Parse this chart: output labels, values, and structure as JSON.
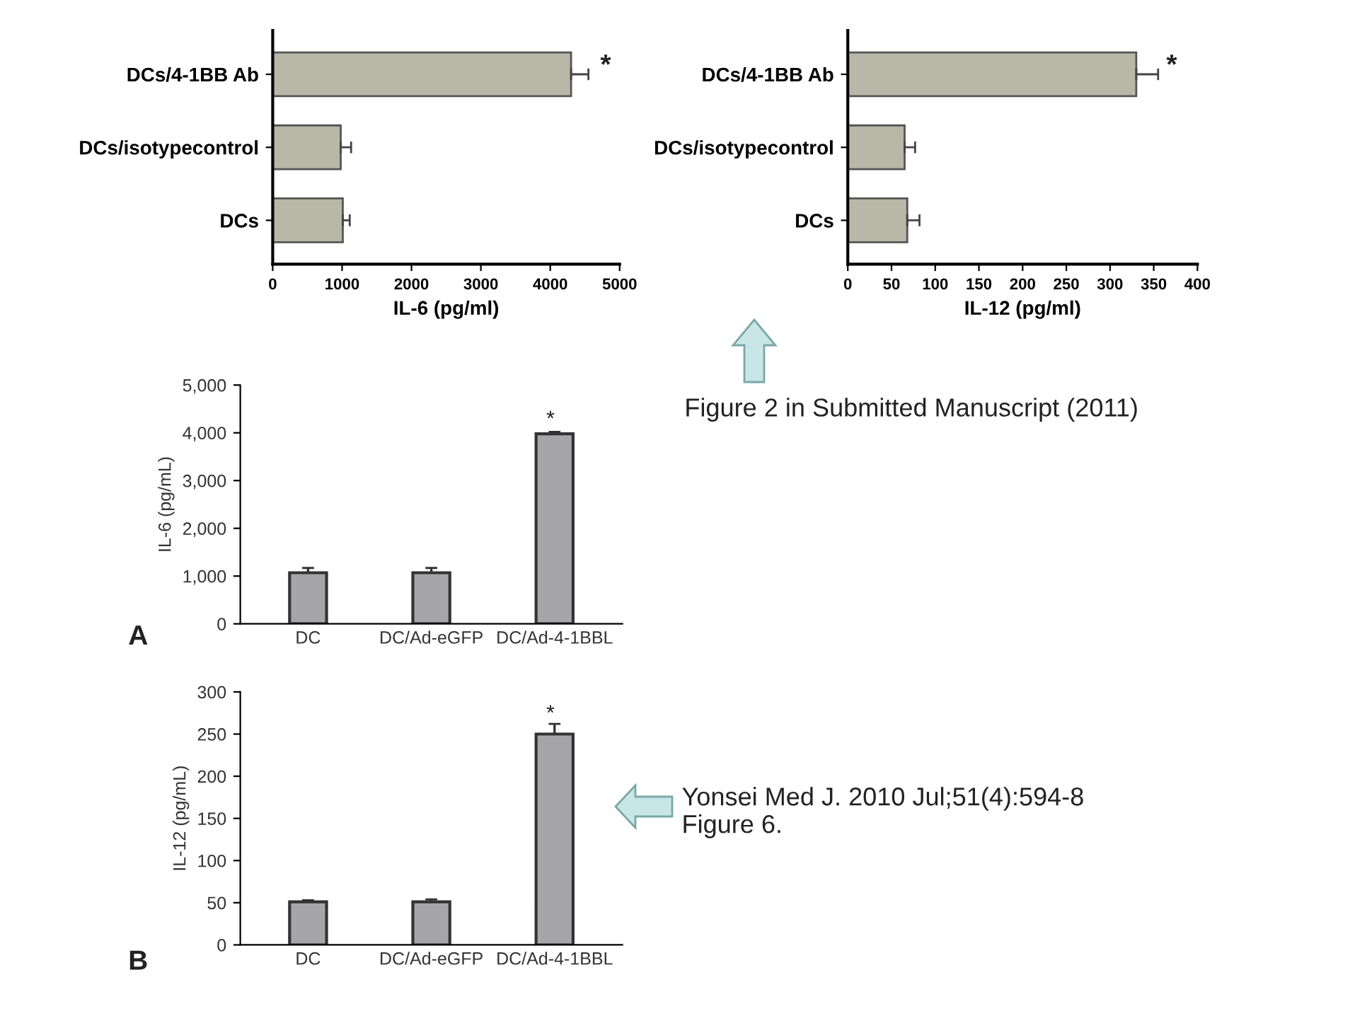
{
  "chart_data": [
    {
      "type": "bar",
      "orientation": "horizontal",
      "categories": [
        "DCs/4-1BB Ab",
        "DCs/isotypecontrol",
        "DCs"
      ],
      "values": [
        4300,
        980,
        1010
      ],
      "errors": [
        [
          4300,
          4550
        ],
        [
          980,
          1130
        ],
        [
          1010,
          1110
        ]
      ],
      "color": "#b8b8a8",
      "xlim": [
        0,
        5000
      ],
      "xticks": [
        0,
        1000,
        2000,
        3000,
        4000,
        5000
      ],
      "xlabel": "IL-6 (pg/ml)",
      "annotations": [
        "*"
      ],
      "grid": false,
      "legend": false
    },
    {
      "type": "bar",
      "orientation": "horizontal",
      "categories": [
        "DCs/4-1BB Ab",
        "DCs/isotypecontrol",
        "DCs"
      ],
      "values": [
        330,
        65,
        68
      ],
      "errors": [
        [
          330,
          355
        ],
        [
          65,
          77
        ],
        [
          68,
          82
        ]
      ],
      "color": "#b8b8a8",
      "xlim": [
        0,
        400
      ],
      "xticks": [
        0,
        50,
        100,
        150,
        200,
        250,
        300,
        350,
        400
      ],
      "xlabel": "IL-12 (pg/ml)",
      "annotations": [
        "*",
        "Figure 2 in Submitted Manuscript (2011)"
      ],
      "grid": false,
      "legend": false
    },
    {
      "type": "bar",
      "categories": [
        "DC",
        "DC/Ad-eGFP",
        "DC/Ad-4-1BBL"
      ],
      "values": [
        1070,
        1070,
        3980
      ],
      "errors": [
        [
          1070,
          1170
        ],
        [
          1070,
          1170
        ],
        [
          3980,
          4020
        ]
      ],
      "color": "#a6a6a8",
      "ylim": [
        0,
        5000
      ],
      "yticks": [
        0,
        {
          "value": 1000,
          "label": "1,000"
        },
        {
          "value": 2000,
          "label": "2,000"
        },
        {
          "value": 3000,
          "label": "3,000"
        },
        {
          "value": 4000,
          "label": "4,000"
        },
        {
          "value": 5000,
          "label": "5,000"
        }
      ],
      "ylabel": "IL-6 (pg/mL)",
      "annotations": [
        "*",
        "A"
      ],
      "grid": false,
      "legend": false
    },
    {
      "type": "bar",
      "categories": [
        "DC",
        "DC/Ad-eGFP",
        "DC/Ad-4-1BBL"
      ],
      "values": [
        51,
        51,
        250
      ],
      "errors": [
        [
          51,
          53
        ],
        [
          51,
          54
        ],
        [
          250,
          262
        ]
      ],
      "color": "#a6a6a8",
      "ylim": [
        0,
        300
      ],
      "yticks": [
        0,
        50,
        100,
        150,
        200,
        250,
        300
      ],
      "ylabel": "IL-12 (pg/mL)",
      "annotations": [
        "*",
        "B",
        "Yonsei Med J. 2010 Jul;51(4):594-8\nFigure 6."
      ],
      "grid": false,
      "legend": false
    }
  ]
}
